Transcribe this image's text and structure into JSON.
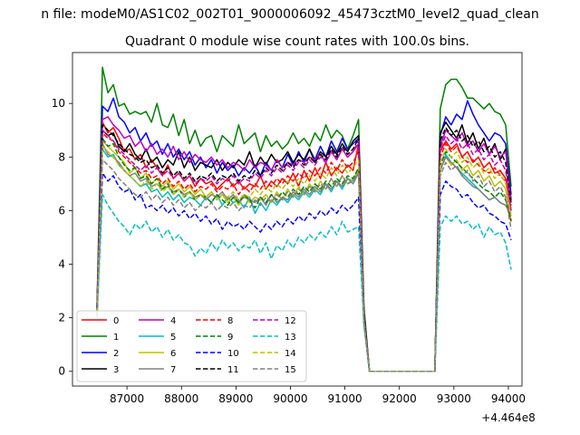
{
  "chart_data": {
    "type": "line",
    "suptitle": "n file: modeM0/AS1C02_002T01_9000006092_45473cztM0_level2_quad_clean",
    "title": "Quadrant 0 module wise count rates with 100.0s bins.",
    "xlabel": "",
    "ylabel": "",
    "x_offset_label": "+4.464e8",
    "xlim": [
      86000,
      94250
    ],
    "ylim": [
      -0.55,
      11.9
    ],
    "x_ticks": [
      87000,
      88000,
      89000,
      90000,
      91000,
      92000,
      93000,
      94000
    ],
    "x_tick_labels": [
      "87000",
      "88000",
      "89000",
      "90000",
      "91000",
      "92000",
      "93000",
      "94000"
    ],
    "y_ticks": [
      0,
      2,
      4,
      6,
      8,
      10
    ],
    "y_tick_labels": [
      "0",
      "2",
      "4",
      "6",
      "8",
      "10"
    ],
    "grid": false,
    "legend_placement": "lower-left",
    "legend_columns": 4,
    "x_start": 86450,
    "x_step": 100,
    "gap": {
      "start_x": 91450,
      "end_x": 92650,
      "value": 0
    },
    "series": [
      {
        "name": "0",
        "color": "#ff0000",
        "dash": false,
        "values": [
          2.3,
          9.3,
          8.9,
          9.1,
          8.7,
          8.2,
          8.3,
          7.9,
          8.1,
          7.6,
          7.9,
          7.6,
          7.3,
          7.7,
          7.2,
          7.4,
          7.1,
          7.3,
          6.9,
          7.2,
          7.0,
          7.1,
          6.8,
          7.0,
          7.2,
          6.9,
          7.1,
          6.8,
          7.0,
          6.9,
          7.3,
          6.8,
          7.1,
          6.9,
          7.2,
          7.0,
          7.4,
          6.9,
          7.5,
          7.1,
          7.6,
          7.2,
          7.8,
          7.3,
          7.6,
          7.4,
          7.7,
          7.5,
          8.5,
          2.0
        ],
        "tail": [
          8.2,
          8.6,
          8.3,
          8.5,
          8.0,
          8.2,
          7.8,
          8.0,
          7.6,
          7.8,
          7.4,
          7.5,
          7.2,
          6.0
        ]
      },
      {
        "name": "1",
        "color": "#008000",
        "dash": false,
        "values": [
          2.5,
          11.35,
          10.4,
          10.7,
          9.9,
          10.0,
          9.6,
          9.7,
          9.6,
          9.7,
          9.3,
          10.0,
          9.2,
          9.1,
          9.6,
          8.8,
          9.4,
          8.5,
          9.0,
          8.4,
          8.7,
          8.8,
          8.2,
          8.8,
          8.6,
          8.4,
          9.2,
          8.5,
          8.7,
          8.9,
          8.2,
          8.8,
          8.4,
          8.6,
          8.3,
          8.5,
          8.9,
          8.5,
          8.7,
          8.4,
          8.9,
          8.6,
          9.2,
          8.7,
          9.0,
          8.8,
          8.3,
          8.8,
          9.4,
          2.4
        ],
        "tail": [
          9.8,
          10.7,
          10.9,
          10.9,
          10.6,
          10.2,
          10.2,
          10.0,
          9.8,
          10.0,
          9.7,
          9.6,
          9.2,
          6.9
        ]
      },
      {
        "name": "2",
        "color": "#0000ff",
        "dash": false,
        "values": [
          2.4,
          9.9,
          9.7,
          10.2,
          9.5,
          9.3,
          8.9,
          9.1,
          8.6,
          8.9,
          8.4,
          8.6,
          8.1,
          8.5,
          8.0,
          8.3,
          7.9,
          8.2,
          7.7,
          8.0,
          7.6,
          7.9,
          7.4,
          7.8,
          7.5,
          7.7,
          7.3,
          7.6,
          7.4,
          7.7,
          7.3,
          7.8,
          7.5,
          7.9,
          7.6,
          8.1,
          7.7,
          8.2,
          7.8,
          8.3,
          7.9,
          8.4,
          8.0,
          8.6,
          8.2,
          8.7,
          8.3,
          8.5,
          8.7,
          2.2
        ],
        "tail": [
          8.8,
          9.5,
          9.2,
          9.6,
          9.4,
          10.1,
          9.6,
          9.2,
          8.9,
          8.6,
          8.9,
          8.8,
          8.5,
          6.6
        ]
      },
      {
        "name": "3",
        "color": "#000000",
        "dash": false,
        "values": [
          2.3,
          9.0,
          8.8,
          8.9,
          8.4,
          8.2,
          8.5,
          8.1,
          7.9,
          8.3,
          7.8,
          8.0,
          7.6,
          7.9,
          7.7,
          8.2,
          7.6,
          8.0,
          7.5,
          7.8,
          7.7,
          7.6,
          7.9,
          7.5,
          7.8,
          7.6,
          7.9,
          7.7,
          8.2,
          7.6,
          8.0,
          7.7,
          8.1,
          7.8,
          7.9,
          8.2,
          7.8,
          8.1,
          7.9,
          8.3,
          7.8,
          8.2,
          8.0,
          8.4,
          8.1,
          8.5,
          8.2,
          8.6,
          8.8,
          2.1
        ],
        "tail": [
          8.9,
          9.3,
          9.0,
          8.7,
          9.2,
          8.5,
          8.9,
          8.3,
          8.7,
          8.1,
          8.5,
          7.9,
          8.3,
          6.4
        ]
      },
      {
        "name": "4",
        "color": "#bf00bf",
        "dash": false,
        "values": [
          2.4,
          9.4,
          9.5,
          9.2,
          9.0,
          8.7,
          8.8,
          8.4,
          8.6,
          8.2,
          8.5,
          8.1,
          8.3,
          8.0,
          8.4,
          7.9,
          8.2,
          7.8,
          8.1,
          7.9,
          7.8,
          8.0,
          7.7,
          7.9,
          7.6,
          7.8,
          7.7,
          7.5,
          7.9,
          7.6,
          7.8,
          7.7,
          7.5,
          7.9,
          7.6,
          7.8,
          7.7,
          7.9,
          7.8,
          8.0,
          7.9,
          8.1,
          7.8,
          8.2,
          7.9,
          8.3,
          8.0,
          8.2,
          8.5,
          2.0
        ],
        "tail": [
          8.4,
          9.0,
          8.8,
          8.6,
          8.9,
          8.4,
          8.6,
          8.2,
          8.5,
          8.1,
          8.4,
          8.0,
          8.2,
          6.3
        ]
      },
      {
        "name": "5",
        "color": "#00bfbf",
        "dash": false,
        "values": [
          2.1,
          8.3,
          8.0,
          8.1,
          7.7,
          7.5,
          7.3,
          7.1,
          6.9,
          7.0,
          6.7,
          6.8,
          6.5,
          6.7,
          6.4,
          6.6,
          6.3,
          6.5,
          6.4,
          6.2,
          6.5,
          6.3,
          6.6,
          6.2,
          6.5,
          6.3,
          6.4,
          6.1,
          6.5,
          5.9,
          6.3,
          6.0,
          6.4,
          6.2,
          6.5,
          6.3,
          6.6,
          6.4,
          6.7,
          6.5,
          6.8,
          6.6,
          7.0,
          6.7,
          7.1,
          6.8,
          7.2,
          7.1,
          7.5,
          1.9
        ],
        "tail": [
          7.5,
          8.1,
          7.8,
          7.6,
          7.4,
          7.2,
          7.0,
          6.8,
          6.6,
          6.4,
          6.5,
          6.3,
          6.2,
          5.9
        ]
      },
      {
        "name": "6",
        "color": "#bfbf00",
        "dash": false,
        "values": [
          2.2,
          8.6,
          8.4,
          8.2,
          8.0,
          7.8,
          7.4,
          7.6,
          7.2,
          7.4,
          7.0,
          7.2,
          6.9,
          7.1,
          6.8,
          7.0,
          6.7,
          6.9,
          6.6,
          6.8,
          6.5,
          6.7,
          6.4,
          6.6,
          6.3,
          6.5,
          6.2,
          6.6,
          6.3,
          6.5,
          6.4,
          6.6,
          6.3,
          6.7,
          6.4,
          6.8,
          6.5,
          6.9,
          6.6,
          7.0,
          6.7,
          7.1,
          6.8,
          7.2,
          6.9,
          7.3,
          7.0,
          7.2,
          7.5,
          1.9
        ],
        "tail": [
          7.6,
          8.0,
          7.7,
          7.9,
          7.5,
          7.7,
          7.3,
          7.5,
          7.1,
          7.3,
          6.9,
          7.1,
          6.8,
          5.6
        ]
      },
      {
        "name": "7",
        "color": "#808080",
        "dash": false,
        "values": [
          2.2,
          8.5,
          8.1,
          8.0,
          7.8,
          7.5,
          7.3,
          7.4,
          7.1,
          7.2,
          6.9,
          7.0,
          6.8,
          6.9,
          6.7,
          6.8,
          6.6,
          6.7,
          6.5,
          6.6,
          6.4,
          6.6,
          6.5,
          6.7,
          6.4,
          6.6,
          6.3,
          6.5,
          6.4,
          6.3,
          6.5,
          6.2,
          6.6,
          6.3,
          6.5,
          6.4,
          6.7,
          6.5,
          6.8,
          6.6,
          6.9,
          6.7,
          7.0,
          6.8,
          7.1,
          6.9,
          7.2,
          7.0,
          7.4,
          1.8
        ],
        "tail": [
          7.5,
          8.0,
          7.8,
          7.6,
          7.3,
          7.1,
          6.9,
          6.8,
          6.6,
          6.4,
          6.5,
          6.3,
          6.2,
          5.8
        ]
      },
      {
        "name": "8",
        "color": "#ff0000",
        "dash": true,
        "values": [
          2.3,
          8.9,
          8.7,
          8.6,
          8.2,
          8.0,
          7.8,
          7.6,
          7.4,
          7.5,
          7.2,
          7.3,
          7.0,
          7.2,
          6.9,
          7.1,
          6.8,
          7.0,
          6.7,
          6.9,
          6.8,
          7.0,
          6.7,
          6.9,
          6.8,
          7.0,
          6.6,
          6.9,
          6.7,
          7.0,
          6.8,
          7.1,
          6.9,
          7.2,
          7.0,
          7.3,
          7.1,
          7.4,
          7.2,
          7.5,
          7.3,
          7.6,
          7.4,
          7.8,
          7.5,
          7.9,
          7.6,
          7.8,
          8.2,
          2.0
        ],
        "tail": [
          8.0,
          8.5,
          8.2,
          8.4,
          8.0,
          7.8,
          7.9,
          7.7,
          7.5,
          7.4,
          7.6,
          7.3,
          7.1,
          5.6
        ]
      },
      {
        "name": "9",
        "color": "#008000",
        "dash": true,
        "values": [
          2.3,
          8.7,
          8.4,
          8.5,
          8.0,
          7.7,
          7.5,
          7.6,
          7.2,
          7.3,
          7.0,
          7.2,
          6.8,
          7.0,
          6.6,
          6.8,
          6.5,
          6.7,
          6.4,
          6.6,
          6.5,
          6.3,
          6.6,
          6.4,
          6.2,
          6.5,
          6.3,
          6.6,
          6.4,
          6.1,
          6.5,
          6.3,
          6.6,
          6.4,
          6.7,
          6.5,
          6.8,
          6.6,
          6.9,
          6.7,
          7.0,
          6.8,
          7.1,
          6.9,
          7.2,
          7.0,
          7.3,
          7.2,
          7.6,
          1.9
        ],
        "tail": [
          7.7,
          8.2,
          8.0,
          7.8,
          7.6,
          7.4,
          7.2,
          7.0,
          6.8,
          6.7,
          6.5,
          6.7,
          6.4,
          5.6
        ]
      },
      {
        "name": "10",
        "color": "#0000ff",
        "dash": true,
        "values": [
          2.1,
          7.4,
          7.1,
          7.3,
          6.9,
          6.7,
          6.8,
          6.4,
          6.6,
          6.1,
          6.2,
          6.0,
          6.2,
          5.9,
          6.1,
          5.8,
          6.0,
          5.7,
          5.9,
          5.6,
          5.8,
          5.5,
          5.7,
          5.3,
          5.6,
          5.4,
          5.5,
          5.3,
          5.6,
          5.4,
          5.2,
          5.5,
          5.3,
          5.6,
          5.4,
          5.7,
          5.5,
          5.8,
          5.6,
          5.9,
          5.7,
          6.0,
          5.8,
          6.1,
          5.9,
          6.2,
          6.0,
          6.2,
          6.5,
          1.8
        ],
        "tail": [
          6.6,
          7.1,
          6.9,
          6.8,
          6.5,
          6.6,
          6.3,
          6.1,
          6.2,
          5.9,
          5.8,
          5.6,
          5.5,
          4.9
        ]
      },
      {
        "name": "11",
        "color": "#000000",
        "dash": true,
        "values": [
          2.4,
          9.2,
          9.0,
          8.8,
          8.5,
          8.3,
          8.1,
          8.0,
          7.8,
          7.9,
          7.6,
          7.7,
          7.4,
          7.6,
          7.3,
          7.5,
          7.2,
          7.4,
          7.1,
          7.3,
          7.2,
          7.4,
          7.1,
          7.3,
          7.2,
          7.4,
          7.1,
          7.3,
          7.2,
          7.5,
          7.3,
          7.6,
          7.4,
          7.7,
          7.5,
          7.8,
          7.6,
          7.9,
          7.7,
          8.0,
          7.8,
          8.1,
          7.9,
          8.3,
          8.0,
          8.4,
          8.1,
          8.3,
          8.7,
          2.1
        ],
        "tail": [
          8.6,
          9.1,
          8.8,
          9.0,
          8.6,
          8.8,
          8.4,
          8.6,
          8.2,
          8.4,
          8.0,
          8.2,
          7.8,
          6.2
        ]
      },
      {
        "name": "12",
        "color": "#bf00bf",
        "dash": true,
        "values": [
          2.3,
          9.0,
          8.8,
          8.6,
          8.3,
          8.1,
          7.9,
          7.7,
          7.5,
          7.7,
          7.4,
          7.6,
          7.3,
          7.5,
          7.2,
          7.4,
          7.1,
          7.3,
          7.0,
          7.2,
          7.1,
          7.3,
          7.0,
          7.2,
          7.1,
          7.3,
          7.0,
          7.2,
          7.1,
          7.4,
          7.2,
          7.5,
          7.3,
          7.6,
          7.4,
          7.7,
          7.5,
          7.8,
          7.6,
          7.9,
          7.7,
          8.0,
          7.8,
          8.2,
          7.9,
          8.3,
          8.0,
          8.2,
          8.6,
          2.0
        ],
        "tail": [
          8.3,
          8.8,
          8.5,
          8.7,
          8.3,
          8.5,
          8.1,
          8.3,
          7.9,
          8.1,
          7.7,
          7.9,
          7.5,
          6.0
        ]
      },
      {
        "name": "13",
        "color": "#00bfbf",
        "dash": true,
        "values": [
          2.0,
          6.6,
          6.2,
          5.9,
          5.6,
          5.4,
          5.1,
          5.5,
          5.3,
          5.6,
          5.2,
          5.4,
          5.0,
          5.3,
          4.9,
          5.1,
          4.8,
          4.7,
          4.3,
          4.6,
          4.4,
          4.8,
          4.5,
          4.9,
          4.6,
          4.8,
          4.5,
          4.7,
          4.6,
          4.9,
          4.4,
          4.8,
          4.2,
          4.7,
          4.5,
          4.9,
          4.6,
          5.0,
          4.8,
          5.1,
          4.9,
          5.2,
          5.0,
          5.4,
          5.1,
          5.6,
          5.2,
          5.3,
          5.4,
          1.7
        ],
        "tail": [
          5.4,
          5.8,
          5.6,
          5.8,
          5.5,
          5.6,
          5.3,
          5.5,
          5.0,
          5.4,
          5.1,
          5.2,
          4.8,
          3.8
        ]
      },
      {
        "name": "14",
        "color": "#bfbf00",
        "dash": true,
        "values": [
          2.2,
          8.4,
          8.2,
          8.0,
          7.7,
          7.5,
          7.3,
          7.1,
          6.9,
          7.1,
          6.8,
          7.0,
          6.7,
          6.9,
          6.6,
          6.8,
          6.5,
          6.7,
          6.4,
          6.6,
          6.5,
          6.7,
          6.4,
          6.6,
          6.5,
          6.7,
          6.4,
          6.6,
          6.5,
          6.8,
          6.6,
          6.9,
          6.7,
          7.0,
          6.8,
          7.1,
          6.9,
          7.2,
          7.0,
          7.3,
          7.1,
          7.4,
          7.2,
          7.6,
          7.3,
          7.7,
          7.4,
          7.6,
          7.9,
          1.9
        ],
        "tail": [
          7.8,
          8.3,
          8.0,
          8.2,
          7.8,
          8.0,
          7.6,
          7.8,
          7.4,
          7.6,
          7.2,
          7.4,
          7.0,
          5.8
        ]
      },
      {
        "name": "15",
        "color": "#808080",
        "dash": true,
        "values": [
          2.1,
          7.9,
          7.7,
          7.5,
          7.2,
          7.0,
          6.8,
          6.6,
          6.5,
          6.7,
          6.4,
          6.6,
          6.3,
          6.5,
          6.2,
          6.4,
          6.1,
          6.3,
          6.0,
          6.2,
          6.1,
          6.3,
          6.0,
          6.2,
          6.1,
          6.3,
          6.0,
          6.2,
          6.1,
          6.4,
          6.2,
          6.5,
          6.3,
          6.6,
          6.4,
          6.7,
          6.5,
          6.8,
          6.6,
          6.9,
          6.7,
          7.0,
          6.8,
          7.2,
          6.9,
          7.3,
          7.0,
          7.1,
          7.4,
          1.8
        ],
        "tail": [
          7.3,
          7.8,
          7.5,
          7.7,
          7.3,
          7.5,
          7.1,
          7.3,
          6.9,
          7.1,
          6.7,
          6.9,
          6.5,
          5.3
        ]
      }
    ]
  }
}
